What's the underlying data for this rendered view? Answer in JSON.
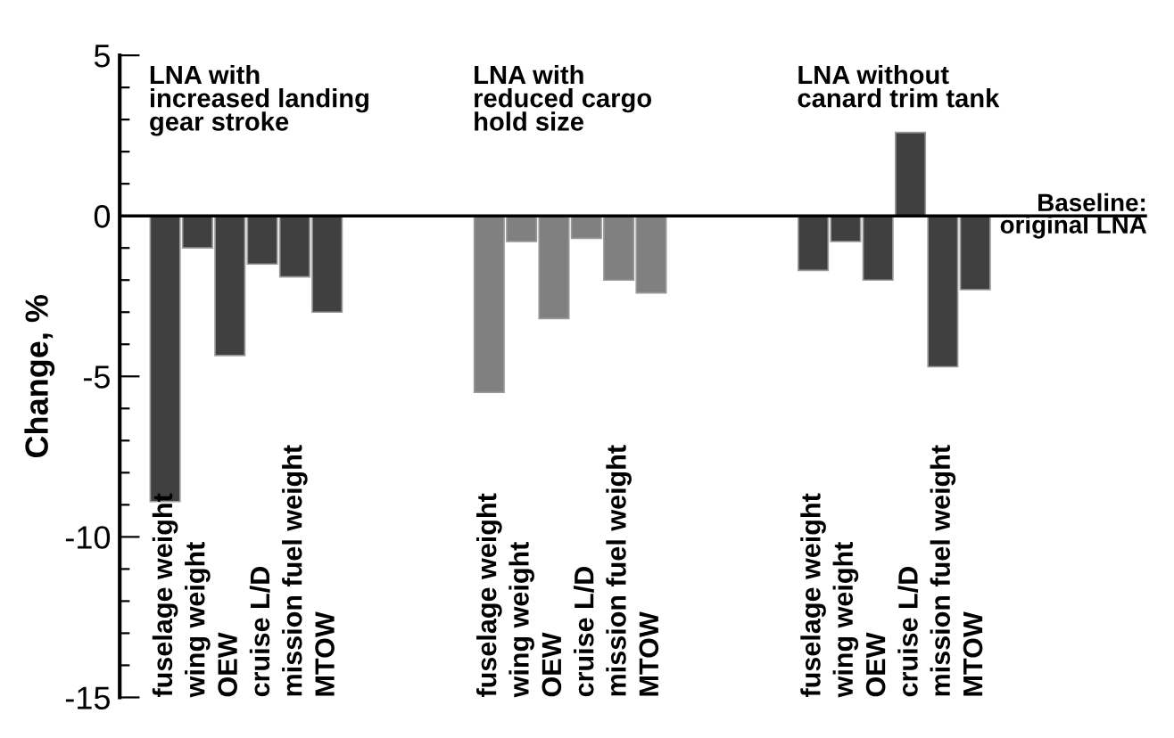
{
  "chart_data": {
    "type": "bar",
    "ylabel": "Change, %",
    "categories": [
      "fuselage weight",
      "wing weight",
      "OEW",
      "cruise L/D",
      "mission fuel weight",
      "MTOW",
      null,
      null,
      null,
      null,
      "fuselage weight",
      "wing weight",
      "OEW",
      "cruise L/D",
      "mission fuel weight",
      "MTOW",
      null,
      null,
      null,
      null,
      "fuselage weight",
      "wing weight",
      "OEW",
      "cruise L/D",
      "mission fuel weight",
      "MTOW"
    ],
    "values": [
      -8.9,
      -1.0,
      -4.35,
      -1.5,
      -1.9,
      -3.0,
      null,
      null,
      null,
      null,
      -5.5,
      -0.8,
      -3.2,
      -0.7,
      -2.0,
      -2.4,
      null,
      null,
      null,
      null,
      -1.7,
      -0.8,
      -2.0,
      2.6,
      -4.7,
      -2.3
    ],
    "colors": [
      "#404040",
      "#404040",
      "#404040",
      "#404040",
      "#404040",
      "#404040",
      null,
      null,
      null,
      null,
      "#808080",
      "#808080",
      "#808080",
      "#808080",
      "#808080",
      "#808080",
      null,
      null,
      null,
      null,
      "#404040",
      "#404040",
      "#404040",
      "#404040",
      "#404040",
      "#404040"
    ],
    "ylim": [
      -15,
      5
    ],
    "yticks": [
      -15,
      {
        "value": -14,
        "label": null
      },
      {
        "value": -13,
        "label": null
      },
      {
        "value": -12,
        "label": null
      },
      {
        "value": -11,
        "label": null
      },
      -10,
      {
        "value": -9,
        "label": null
      },
      {
        "value": -8,
        "label": null
      },
      {
        "value": -7,
        "label": null
      },
      {
        "value": -6,
        "label": null
      },
      -5,
      {
        "value": -4,
        "label": null
      },
      {
        "value": -3,
        "label": null
      },
      {
        "value": -2,
        "label": null
      },
      {
        "value": -1,
        "label": null
      },
      0,
      {
        "value": 1,
        "label": null
      },
      {
        "value": 2,
        "label": null
      },
      {
        "value": 3,
        "label": null
      },
      {
        "value": 4,
        "label": null
      },
      5
    ],
    "ref_lines": [
      {
        "axis": "y",
        "value": 0,
        "label": "Baseline:\noriginal LNA",
        "color": "#000000"
      }
    ],
    "annotations": [
      "LNA with\nincreased landing\ngear stroke",
      "LNA with\nreduced cargo\nhold size",
      "LNA without\ncanard trim tank"
    ],
    "grid": false,
    "legend": false
  }
}
